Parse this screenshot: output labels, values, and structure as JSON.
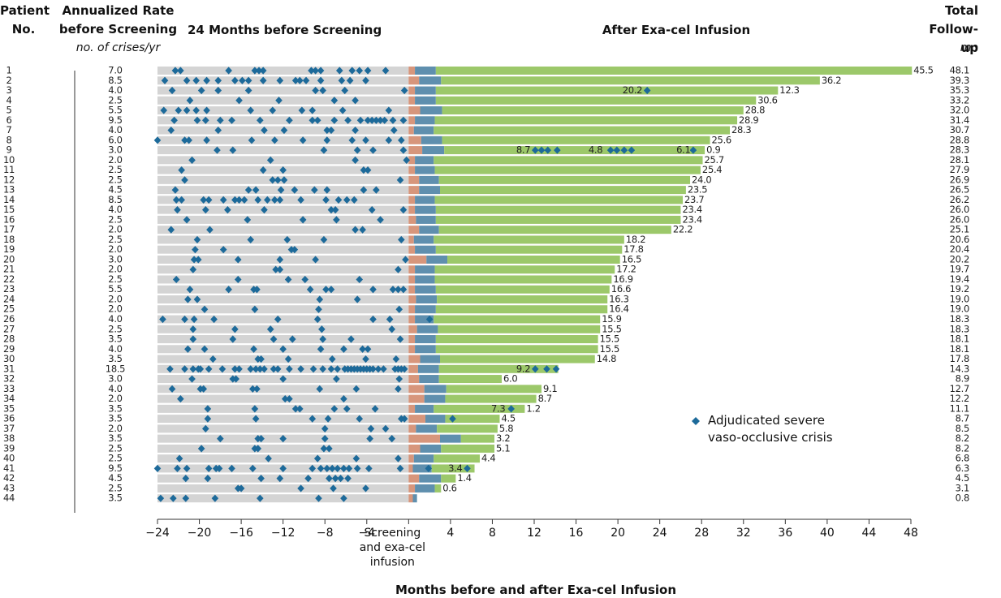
{
  "chart_data": {
    "type": "swimmer",
    "headers": {
      "patient": "Patient No.",
      "rate": "Annualized Rate before Screening",
      "rate_unit": "no. of crises/yr",
      "pre": "24 Months before Screening",
      "post": "After Exa-cel Infusion",
      "followup": "Total Follow-up",
      "followup_unit": "mo"
    },
    "x_label": "Months before and after Exa-cel Infusion",
    "legend": "Adjudicated severe vaso-occlusive crisis",
    "xlim": [
      -24,
      48
    ],
    "xticks": [
      {
        "value": -24,
        "label": "−24"
      },
      {
        "value": -20,
        "label": "−20"
      },
      {
        "value": -16,
        "label": "−16"
      },
      {
        "value": -12,
        "label": "−12"
      },
      {
        "value": -8,
        "label": "−8"
      },
      {
        "value": -4,
        "label": "−4"
      },
      {
        "value": 0,
        "label": "Screening and exa-cel infusion"
      },
      4,
      8,
      12,
      16,
      20,
      24,
      28,
      32,
      36,
      40,
      44,
      48
    ],
    "colors": {
      "window": "#d4d4d4",
      "conditioning": "#d7967c",
      "engraftment": "#5f8fae",
      "follow": "#9cc86a",
      "crisis": "#1d6a9a"
    },
    "patients": [
      "1",
      "2",
      "3",
      "4",
      "5",
      "6",
      "7",
      "8",
      "9",
      "10",
      "11",
      "12",
      "13",
      "14",
      "15",
      "16",
      "17",
      "18",
      "19",
      "20",
      "21",
      "22",
      "23",
      "24",
      "25",
      "26",
      "27",
      "28",
      "29",
      "30",
      "31",
      "32",
      "33",
      "34",
      "35",
      "36",
      "37",
      "38",
      "39",
      "40",
      "41",
      "42",
      "43",
      "44"
    ],
    "rates": [
      "7.0",
      "8.5",
      "4.0",
      "2.5",
      "5.5",
      "9.5",
      "4.0",
      "6.0",
      "3.0",
      "2.0",
      "2.5",
      "2.5",
      "4.5",
      "8.5",
      "4.0",
      "2.5",
      "2.0",
      "2.5",
      "2.0",
      "3.0",
      "2.0",
      "2.5",
      "5.5",
      "2.0",
      "2.0",
      "4.0",
      "2.5",
      "3.5",
      "4.0",
      "3.5",
      "18.5",
      "3.0",
      "4.0",
      "2.0",
      "3.5",
      "3.5",
      "2.0",
      "3.5",
      "2.5",
      "2.5",
      "9.5",
      "4.5",
      "2.5",
      "3.5"
    ],
    "followup": [
      48.1,
      39.3,
      35.3,
      33.2,
      32.0,
      31.4,
      30.7,
      28.8,
      28.3,
      28.1,
      27.9,
      26.9,
      26.5,
      26.2,
      26.0,
      26.0,
      25.1,
      20.6,
      20.4,
      20.2,
      19.7,
      19.4,
      19.2,
      19.0,
      19.0,
      18.3,
      18.3,
      18.1,
      18.1,
      17.8,
      14.3,
      8.9,
      12.7,
      12.2,
      11.1,
      8.7,
      8.5,
      8.2,
      8.2,
      6.8,
      6.3,
      4.5,
      3.1,
      0.8
    ],
    "followup_labels": [
      "48.1",
      "39.3",
      "35.3",
      "33.2",
      "32.0",
      "31.4",
      "30.7",
      "28.8",
      "28.3",
      "28.1",
      "27.9",
      "26.9",
      "26.5",
      "26.2",
      "26.0",
      "26.0",
      "25.1",
      "20.6",
      "20.4",
      "20.2",
      "19.7",
      "19.4",
      "19.2",
      "19.0",
      "19.0",
      "18.3",
      "18.3",
      "18.1",
      "18.1",
      "17.8",
      "14.3",
      "8.9",
      "12.7",
      "12.2",
      "11.1",
      "8.7",
      "8.5",
      "8.2",
      "8.2",
      "6.8",
      "6.3",
      "4.5",
      "3.1",
      "0.8"
    ],
    "conditioning": [
      0.6,
      1.0,
      0.6,
      0.6,
      1.1,
      0.6,
      0.5,
      1.2,
      1.3,
      0.6,
      0.6,
      1.0,
      1.0,
      0.6,
      0.6,
      0.7,
      1.0,
      0.5,
      0.6,
      1.7,
      0.6,
      0.6,
      0.6,
      0.7,
      0.6,
      0.6,
      0.8,
      0.6,
      0.6,
      1.1,
      0.9,
      1.0,
      1.5,
      1.5,
      0.6,
      1.6,
      0.7,
      3.0,
      1.1,
      0.5,
      0.4,
      1.0,
      0.6,
      0.4
    ],
    "engraftment": [
      2.0,
      2.1,
      2.0,
      2.0,
      2.1,
      1.9,
      1.9,
      2.0,
      2.1,
      1.8,
      1.9,
      1.9,
      2.0,
      1.9,
      2.0,
      1.9,
      1.9,
      1.9,
      2.0,
      2.0,
      1.9,
      1.9,
      2.0,
      2.0,
      2.0,
      1.8,
      2.0,
      2.0,
      2.0,
      1.9,
      2.0,
      1.9,
      2.1,
      2.0,
      1.8,
      1.9,
      2.0,
      2.0,
      2.0,
      1.9,
      1.8,
      2.1,
      1.9,
      0.4
    ],
    "free": [
      [
        45.5
      ],
      [
        36.2
      ],
      [
        20.2,
        12.3
      ],
      [
        30.6
      ],
      [
        28.8
      ],
      [
        28.9
      ],
      [
        28.3
      ],
      [
        25.6
      ],
      [
        8.7,
        4.8,
        6.1,
        0.9
      ],
      [
        25.7
      ],
      [
        25.4
      ],
      [
        24.0
      ],
      [
        23.5
      ],
      [
        23.7
      ],
      [
        23.4
      ],
      [
        23.4
      ],
      [
        22.2
      ],
      [
        18.2
      ],
      [
        17.8
      ],
      [
        16.5
      ],
      [
        17.2
      ],
      [
        16.9
      ],
      [
        16.6
      ],
      [
        16.3
      ],
      [
        16.4
      ],
      [
        15.9
      ],
      [
        15.5
      ],
      [
        15.5
      ],
      [
        15.5
      ],
      [
        14.8
      ],
      [
        9.2
      ],
      [
        6.0
      ],
      [
        9.1
      ],
      [
        8.7
      ],
      [
        7.3,
        1.2
      ],
      [
        4.5
      ],
      [
        5.8
      ],
      [
        3.2
      ],
      [
        5.1
      ],
      [
        4.4
      ],
      [
        3.4
      ],
      [
        1.4
      ],
      [
        0.6
      ],
      []
    ],
    "free_labels": [
      [
        "45.5"
      ],
      [
        "36.2"
      ],
      [
        "20.2",
        "12.3"
      ],
      [
        "30.6"
      ],
      [
        "28.8"
      ],
      [
        "28.9"
      ],
      [
        "28.3"
      ],
      [
        "25.6"
      ],
      [
        "8.7",
        "4.8",
        "6.1",
        "0.9"
      ],
      [
        "25.7"
      ],
      [
        "25.4"
      ],
      [
        "24.0"
      ],
      [
        "23.5"
      ],
      [
        "23.7"
      ],
      [
        "23.4"
      ],
      [
        "23.4"
      ],
      [
        "22.2"
      ],
      [
        "18.2"
      ],
      [
        "17.8"
      ],
      [
        "16.5"
      ],
      [
        "17.2"
      ],
      [
        "16.9"
      ],
      [
        "16.6"
      ],
      [
        "16.3"
      ],
      [
        "16.4"
      ],
      [
        "15.9"
      ],
      [
        "15.5"
      ],
      [
        "15.5"
      ],
      [
        "15.5"
      ],
      [
        "14.8"
      ],
      [
        "9.2"
      ],
      [
        "6.0"
      ],
      [
        "9.1"
      ],
      [
        "8.7"
      ],
      [
        "7.3",
        "1.2"
      ],
      [
        "4.5"
      ],
      [
        "5.8"
      ],
      [
        "3.2"
      ],
      [
        "5.1"
      ],
      [
        "4.4"
      ],
      [
        "3.4"
      ],
      [
        "1.4"
      ],
      [
        "0.6"
      ],
      []
    ],
    "pre_crises": [
      [
        -22.3,
        -21.8,
        -17.2,
        -14.7,
        -14.3,
        -13.9,
        -9.3,
        -8.9,
        -8.4,
        -6.6,
        -5.4,
        -4.7,
        -3.9,
        -2.2
      ],
      [
        -23.3,
        -21.2,
        -20.3,
        -19.3,
        -18.2,
        -16.6,
        -15.9,
        -15.3,
        -13.9,
        -12.3,
        -10.8,
        -10.4,
        -9.8,
        -8.4,
        -6.4,
        -5.6,
        -4.1
      ],
      [
        -22.6,
        -19.8,
        -18.2,
        -15.3,
        -8.9,
        -8.2,
        -6.1,
        -0.4
      ],
      [
        -20.9,
        -16.2,
        -12.4,
        -7.1,
        -5.1
      ],
      [
        -23.4,
        -22.0,
        -21.2,
        -20.3,
        -19.3,
        -15.1,
        -13.0,
        -10.2,
        -9.2,
        -6.3,
        -1.9
      ],
      [
        -22.4,
        -20.2,
        -19.4,
        -18.0,
        -16.9,
        -14.2,
        -11.4,
        -9.2,
        -8.7,
        -7.1,
        -5.8,
        -4.6,
        -3.9,
        -3.5,
        -3.1,
        -2.7,
        -2.3,
        -1.5,
        -0.5
      ],
      [
        -22.7,
        -18.2,
        -13.8,
        -11.9,
        -7.8,
        -7.4,
        -5.1,
        -1.4
      ],
      [
        -24.0,
        -21.4,
        -21.0,
        -19.3,
        -15.0,
        -12.8,
        -10.1,
        -7.8,
        -5.4,
        -4.1,
        -1.9,
        -0.7
      ],
      [
        -18.3,
        -16.8,
        -8.1,
        -4.9,
        -3.4,
        -0.5
      ],
      [
        -20.7,
        -13.2,
        -5.1,
        -0.2
      ],
      [
        -21.7,
        -13.9,
        -12.0,
        -4.3,
        -3.9
      ],
      [
        -21.4,
        -13.0,
        -12.5,
        -11.9,
        -0.8
      ],
      [
        -22.3,
        -15.3,
        -14.6,
        -12.2,
        -10.9,
        -9.0,
        -7.8,
        -4.3,
        -3.1
      ],
      [
        -22.2,
        -21.7,
        -19.6,
        -19.1,
        -17.7,
        -16.6,
        -16.2,
        -15.7,
        -14.4,
        -13.5,
        -12.8,
        -12.3,
        -10.3,
        -7.9,
        -6.7,
        -5.9,
        -5.2
      ],
      [
        -22.1,
        -19.4,
        -17.3,
        -13.8,
        -7.4,
        -7.0,
        -3.5,
        -0.5
      ],
      [
        -21.2,
        -15.4,
        -10.1,
        -6.9,
        -2.7
      ],
      [
        -22.7,
        -19.0,
        -5.1,
        -4.4
      ],
      [
        -20.2,
        -15.1,
        -11.6,
        -8.1,
        -0.7
      ],
      [
        -20.4,
        -17.7,
        -11.2,
        -10.9
      ],
      [
        -20.5,
        -20.1,
        -16.3,
        -12.3,
        -8.9,
        -0.3
      ],
      [
        -20.6,
        -12.7,
        -12.3,
        -1.0
      ],
      [
        -22.2,
        -16.3,
        -11.5,
        -9.9,
        -4.7
      ],
      [
        -20.9,
        -17.2,
        -14.8,
        -14.5,
        -9.4,
        -7.9,
        -7.4,
        -3.4,
        -1.5,
        -1.0,
        -0.5
      ],
      [
        -21.1,
        -20.2,
        -8.5,
        -4.9
      ],
      [
        -19.5,
        -14.7,
        -8.6,
        -0.9
      ],
      [
        -23.5,
        -21.4,
        -20.5,
        -18.6,
        -12.5,
        -8.7,
        -3.4,
        -1.8
      ],
      [
        -20.6,
        -16.6,
        -13.2,
        -8.3,
        -1.6
      ],
      [
        -20.6,
        -16.8,
        -12.9,
        -11.1,
        -8.2,
        -5.5,
        -0.8
      ],
      [
        -21.1,
        -19.5,
        -14.8,
        -12.0,
        -8.4,
        -6.2,
        -4.4,
        -3.9
      ],
      [
        -18.7,
        -14.4,
        -14.1,
        -11.5,
        -7.3,
        -4.1,
        -1.2
      ],
      [
        -22.8,
        -21.4,
        -20.6,
        -20.1,
        -19.9,
        -19.1,
        -17.8,
        -16.6,
        -16.2,
        -15.1,
        -14.6,
        -14.2,
        -13.8,
        -12.9,
        -12.5,
        -11.4,
        -10.3,
        -9.1,
        -8.2,
        -7.4,
        -6.8,
        -6.1,
        -5.8,
        -5.5,
        -5.2,
        -4.9,
        -4.6,
        -4.3,
        -4.0,
        -3.7,
        -3.4,
        -2.9,
        -2.4,
        -1.3,
        -1.0,
        -0.7,
        -0.4
      ],
      [
        -20.7,
        -16.8,
        -16.5,
        -12.0,
        -6.9,
        -0.9
      ],
      [
        -22.6,
        -19.9,
        -19.6,
        -14.9,
        -14.5,
        -8.5,
        -5.0,
        -1.0
      ],
      [
        -21.8,
        -11.8,
        -11.4,
        -6.2
      ],
      [
        -19.2,
        -14.7,
        -10.8,
        -10.4,
        -7.1,
        -5.9,
        -3.2
      ],
      [
        -19.2,
        -14.6,
        -9.2,
        -7.7,
        -4.7,
        -0.7,
        -0.4
      ],
      [
        -19.4,
        -8.0,
        -3.6,
        -2.2
      ],
      [
        -18.0,
        -14.4,
        -14.1,
        -12.0,
        -8.0,
        -3.7,
        -1.6
      ],
      [
        -19.8,
        -14.7,
        -14.4,
        -8.1,
        -7.6
      ],
      [
        -21.9,
        -13.4,
        -8.7,
        -5.0,
        -1.0
      ],
      [
        -24.0,
        -22.1,
        -21.2,
        -19.1,
        -18.4,
        -18.1,
        -16.9,
        -14.9,
        -12.0,
        -9.2,
        -8.4,
        -7.8,
        -7.3,
        -6.8,
        -6.2,
        -5.7,
        -4.9,
        -3.8,
        -0.8
      ],
      [
        -21.3,
        -19.2,
        -14.1,
        -12.3,
        -9.6,
        -7.6,
        -7.0,
        -6.5,
        -5.8
      ],
      [
        -16.3,
        -16.0,
        -10.3,
        -7.2,
        -4.1
      ],
      [
        -23.7,
        -22.5,
        -21.3,
        -18.5,
        -14.2,
        -8.6,
        -6.2
      ]
    ],
    "post_crises": [
      [],
      [],
      [
        22.8
      ],
      [],
      [],
      [],
      [],
      [],
      [
        12.1,
        12.7,
        13.3,
        14.2,
        19.3,
        19.9,
        20.6,
        21.3,
        27.2
      ],
      [],
      [],
      [],
      [],
      [],
      [],
      [],
      [],
      [],
      [],
      [],
      [],
      [],
      [],
      [],
      [],
      [
        2.0
      ],
      [],
      [],
      [],
      [],
      [
        12.1,
        13.2,
        14.1
      ],
      [],
      [],
      [],
      [
        9.8
      ],
      [
        4.2
      ],
      [],
      [],
      [],
      [],
      [
        1.9,
        5.6
      ],
      [],
      [],
      []
    ]
  }
}
